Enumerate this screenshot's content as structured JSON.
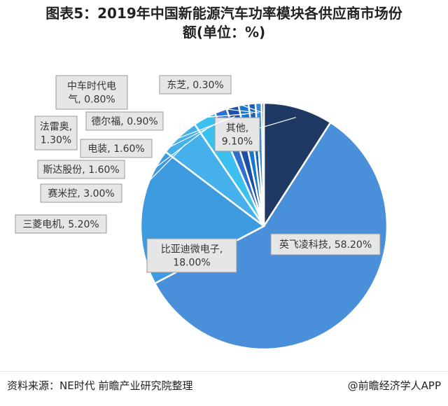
{
  "chart_data": {
    "type": "pie",
    "title_line1": "图表5：2019年中国新能源汽车功率模块各供应商市场份",
    "title_line2": "额(单位：%)",
    "slices": [
      {
        "label": "其他",
        "value": 9.1,
        "value_text": "9.10%",
        "color": "#1f3864"
      },
      {
        "label": "英飞凌科技",
        "value": 58.2,
        "value_text": "58.20%",
        "color": "#4a8fd9"
      },
      {
        "label": "比亚迪微电子",
        "value": 18.0,
        "value_text": "18.00%",
        "color": "#3f9be0"
      },
      {
        "label": "三菱电机",
        "value": 5.2,
        "value_text": "5.20%",
        "color": "#45b0ea"
      },
      {
        "label": "赛米控",
        "value": 3.0,
        "value_text": "3.00%",
        "color": "#3cc0f0"
      },
      {
        "label": "斯达股份",
        "value": 1.6,
        "value_text": "1.60%",
        "color": "#2f6fd0"
      },
      {
        "label": "电装",
        "value": 1.6,
        "value_text": "1.60%",
        "color": "#1c4fa6"
      },
      {
        "label": "法雷奥",
        "value": 1.3,
        "value_text": "1.30%",
        "color": "#1677cf"
      },
      {
        "label": "德尔福",
        "value": 0.9,
        "value_text": "0.90%",
        "color": "#1a5fb4"
      },
      {
        "label": "中车时代电气",
        "value": 0.8,
        "value_text": "0.80%",
        "color": "#2a89dd"
      },
      {
        "label": "东芝",
        "value": 0.3,
        "value_text": "0.30%",
        "color": "#1b3f88"
      }
    ]
  },
  "footer": {
    "source": "资料来源：NE时代 前瞻产业研究院整理",
    "brand": "@前瞻经济学人APP"
  }
}
